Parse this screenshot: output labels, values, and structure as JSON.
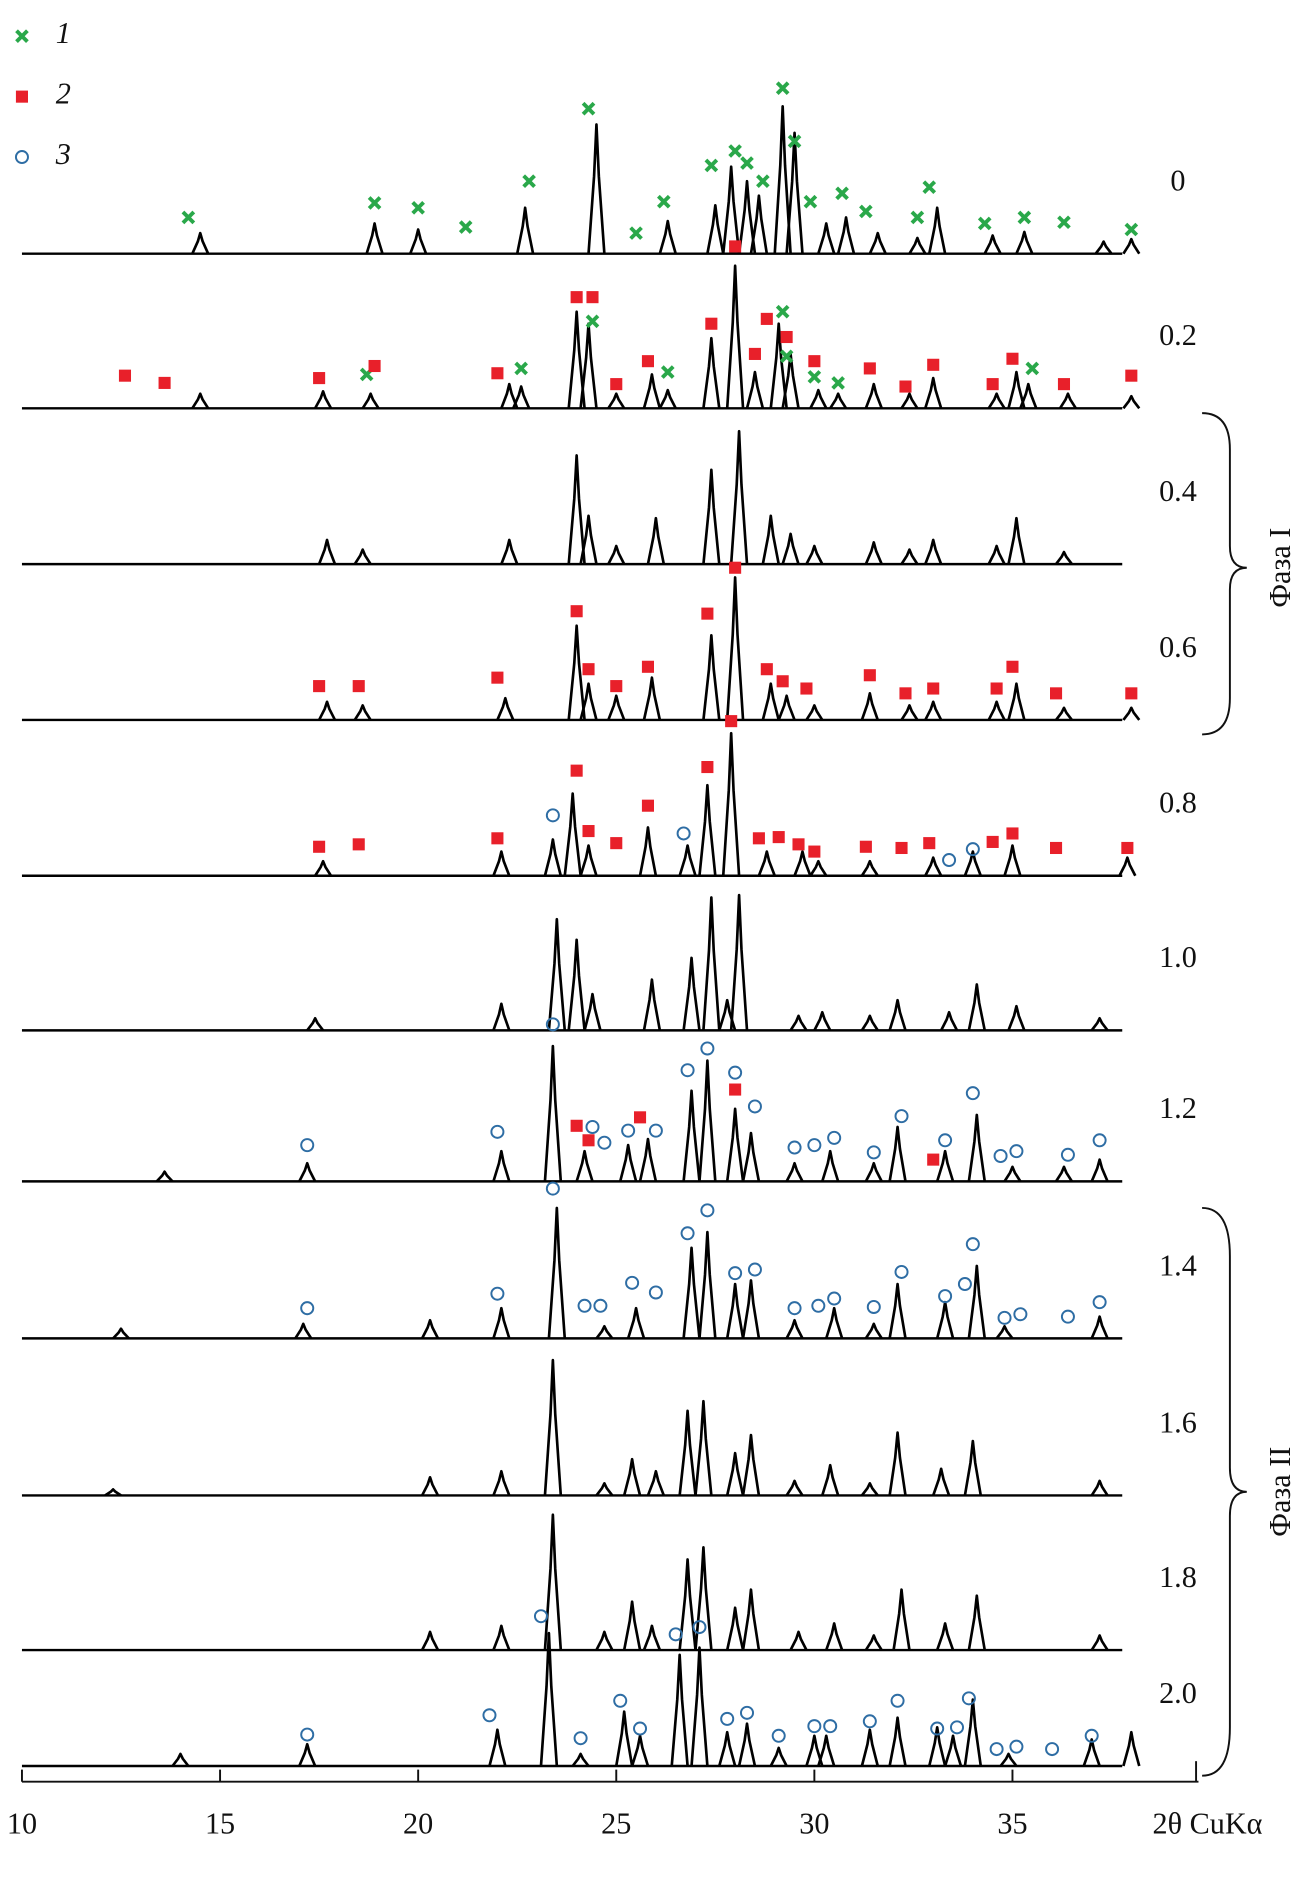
{
  "chart_data": {
    "type": "line",
    "xlabel": "2θ CuKα",
    "xlim": [
      10,
      39.6
    ],
    "xticks": [
      10,
      15,
      20,
      25,
      30,
      35
    ],
    "legend": [
      {
        "label": "1",
        "symbol": "cross",
        "color": "#2aa84a"
      },
      {
        "label": "2",
        "symbol": "square",
        "color": "#e8202a"
      },
      {
        "label": "3",
        "symbol": "circle",
        "color": "#2e6da4"
      }
    ],
    "phases": [
      {
        "label": "Фаза I"
      },
      {
        "label": "Фаза II"
      }
    ],
    "series": [
      {
        "name": "0",
        "color": "#000000",
        "x": [
          14.5,
          18.9,
          20.0,
          22.7,
          24.5,
          26.3,
          27.5,
          27.9,
          28.3,
          28.6,
          29.2,
          29.5,
          30.3,
          30.8,
          31.6,
          32.6,
          33.1,
          34.5,
          35.3,
          37.3,
          38.0
        ],
        "values": [
          17,
          25,
          20,
          38,
          107,
          27,
          40,
          72,
          60,
          48,
          122,
          100,
          25,
          30,
          17,
          13,
          38,
          15,
          18,
          10,
          12
        ],
        "markers": [
          {
            "x": [
              14.2,
              18.9,
              20.0,
              21.2,
              22.8,
              24.3,
              25.5,
              26.2,
              27.4,
              28.0,
              28.3,
              28.7,
              29.2,
              29.5,
              29.9,
              30.7,
              31.3,
              32.9,
              32.6,
              34.3,
              35.3,
              36.3,
              38.0
            ],
            "values": [
              30,
              42,
              38,
              22,
              60,
              120,
              17,
              43,
              73,
              85,
              75,
              60,
              137,
              93,
              43,
              50,
              35,
              55,
              30,
              25,
              30,
              26,
              20
            ]
          },
          {
            "x": [],
            "values": []
          },
          {
            "x": [],
            "values": []
          }
        ]
      },
      {
        "name": "0.2",
        "color": "#000000",
        "x": [
          14.5,
          17.6,
          18.8,
          22.3,
          22.6,
          24.0,
          24.3,
          25.0,
          25.9,
          26.3,
          27.4,
          28.0,
          28.5,
          29.1,
          29.4,
          30.1,
          30.6,
          31.5,
          32.4,
          33.0,
          34.6,
          35.1,
          35.4,
          36.4,
          38.0
        ],
        "values": [
          12,
          14,
          12,
          20,
          18,
          80,
          70,
          12,
          28,
          15,
          58,
          118,
          30,
          70,
          45,
          15,
          12,
          20,
          12,
          25,
          12,
          30,
          20,
          12,
          10
        ],
        "markers": [
          {
            "x": [
              18.7,
              22.6,
              24.4,
              26.3,
              29.2,
              29.3,
              30.0,
              30.6,
              35.5
            ],
            "values": [
              28,
              33,
              72,
              30,
              80,
              43,
              26,
              21,
              33
            ]
          },
          {
            "x": [
              12.6,
              13.6,
              17.5,
              18.9,
              22.0,
              24.0,
              24.4,
              25.0,
              25.8,
              27.4,
              28.0,
              28.5,
              28.8,
              29.3,
              30.0,
              31.4,
              32.3,
              33.0,
              34.5,
              35.0,
              36.3,
              38.0
            ],
            "values": [
              27,
              21,
              25,
              35,
              29,
              92,
              92,
              20,
              39,
              70,
              134,
              45,
              74,
              59,
              39,
              33,
              18,
              36,
              20,
              41,
              20,
              27
            ]
          },
          {
            "x": [],
            "values": []
          }
        ]
      },
      {
        "name": "0.4",
        "color": "#000000",
        "x": [
          17.7,
          18.6,
          22.3,
          24.0,
          24.3,
          25.0,
          26.0,
          27.4,
          28.1,
          28.9,
          29.4,
          30.0,
          31.5,
          32.4,
          33.0,
          34.6,
          35.1,
          36.3
        ],
        "values": [
          20,
          12,
          20,
          90,
          40,
          15,
          38,
          78,
          110,
          40,
          25,
          15,
          18,
          12,
          20,
          15,
          38,
          10
        ],
        "markers": [
          {
            "x": [],
            "values": []
          },
          {
            "x": [],
            "values": []
          },
          {
            "x": [],
            "values": []
          }
        ]
      },
      {
        "name": "0.6",
        "color": "#000000",
        "x": [
          17.7,
          18.6,
          22.2,
          24.0,
          24.3,
          25.0,
          25.9,
          27.4,
          28.0,
          28.9,
          29.3,
          30.0,
          31.4,
          32.4,
          33.0,
          34.6,
          35.1,
          36.3,
          38.0
        ],
        "values": [
          15,
          12,
          18,
          78,
          30,
          20,
          35,
          70,
          118,
          30,
          20,
          12,
          22,
          12,
          15,
          15,
          30,
          10,
          10
        ],
        "markers": [
          {
            "x": [],
            "values": []
          },
          {
            "x": [
              17.5,
              18.5,
              22.0,
              24.0,
              24.3,
              25.0,
              25.8,
              27.3,
              28.0,
              28.8,
              29.2,
              29.8,
              31.4,
              32.3,
              33.0,
              34.6,
              35.0,
              36.1,
              38.0
            ],
            "values": [
              28,
              28,
              35,
              90,
              42,
              28,
              44,
              88,
              126,
              42,
              32,
              26,
              37,
              22,
              26,
              26,
              44,
              22,
              22
            ]
          },
          {
            "x": [],
            "values": []
          }
        ]
      },
      {
        "name": "0.8",
        "color": "#000000",
        "x": [
          17.6,
          22.1,
          23.4,
          23.9,
          24.3,
          25.8,
          26.8,
          27.3,
          27.9,
          28.8,
          29.7,
          30.1,
          31.4,
          33.0,
          34.0,
          35.0,
          37.9
        ],
        "values": [
          12,
          20,
          30,
          68,
          25,
          40,
          25,
          75,
          118,
          20,
          20,
          12,
          12,
          15,
          20,
          25,
          15
        ],
        "markers": [
          {
            "x": [],
            "values": []
          },
          {
            "x": [
              17.5,
              18.5,
              22.0,
              24.0,
              24.3,
              25.0,
              25.8,
              27.3,
              27.9,
              28.6,
              29.1,
              29.6,
              30.0,
              31.3,
              32.2,
              32.9,
              34.5,
              35.0,
              36.1,
              37.9
            ],
            "values": [
              24,
              26,
              31,
              87,
              37,
              27,
              58,
              90,
              128,
              31,
              32,
              26,
              20,
              24,
              23,
              27,
              28,
              35,
              23,
              23
            ]
          },
          {
            "x": [
              23.4,
              26.7,
              33.4,
              34.0
            ],
            "values": [
              50,
              35,
              13,
              22
            ]
          }
        ]
      },
      {
        "name": "1.0",
        "color": "#000000",
        "x": [
          17.4,
          22.1,
          23.5,
          24.0,
          24.4,
          25.9,
          26.9,
          27.4,
          27.8,
          28.1,
          29.6,
          30.2,
          31.4,
          32.1,
          33.4,
          34.1,
          35.1,
          37.2
        ],
        "values": [
          10,
          22,
          92,
          75,
          30,
          42,
          60,
          110,
          25,
          112,
          12,
          15,
          12,
          25,
          15,
          38,
          20,
          10
        ],
        "markers": [
          {
            "x": [],
            "values": []
          },
          {
            "x": [],
            "values": []
          },
          {
            "x": [],
            "values": []
          }
        ]
      },
      {
        "name": "1.2",
        "color": "#000000",
        "x": [
          13.6,
          17.2,
          22.1,
          23.4,
          24.2,
          25.3,
          25.8,
          26.9,
          27.3,
          28.0,
          28.4,
          29.5,
          30.4,
          31.5,
          32.1,
          33.3,
          34.1,
          35.0,
          36.3,
          37.2
        ],
        "values": [
          8,
          15,
          25,
          112,
          25,
          30,
          35,
          75,
          100,
          60,
          40,
          15,
          25,
          15,
          45,
          25,
          55,
          12,
          12,
          18
        ],
        "markers": [
          {
            "x": [],
            "values": []
          },
          {
            "x": [
              24.0,
              24.3,
              25.6,
              28.0,
              33.0
            ],
            "values": [
              46,
              34,
              53,
              76,
              18
            ]
          },
          {
            "x": [
              17.2,
              22.0,
              23.4,
              24.4,
              24.7,
              25.3,
              26.0,
              26.8,
              27.3,
              28.0,
              28.5,
              29.5,
              30.0,
              30.5,
              31.5,
              32.2,
              33.3,
              34.0,
              34.7,
              35.1,
              36.4,
              37.2
            ],
            "values": [
              30,
              41,
              130,
              45,
              32,
              42,
              42,
              92,
              110,
              90,
              62,
              28,
              30,
              36,
              24,
              54,
              34,
              73,
              21,
              25,
              22,
              34
            ]
          }
        ]
      },
      {
        "name": "1.4",
        "color": "#000000",
        "x": [
          12.5,
          17.1,
          20.3,
          22.1,
          23.5,
          24.7,
          25.5,
          26.9,
          27.3,
          28.0,
          28.4,
          29.5,
          30.5,
          31.5,
          32.1,
          33.3,
          34.1,
          34.8,
          37.2
        ],
        "values": [
          8,
          12,
          15,
          25,
          108,
          10,
          25,
          75,
          88,
          45,
          48,
          15,
          25,
          12,
          45,
          30,
          60,
          10,
          18
        ],
        "markers": [
          {
            "x": [],
            "values": []
          },
          {
            "x": [],
            "values": []
          },
          {
            "x": [
              17.2,
              22.0,
              23.4,
              24.2,
              24.6,
              25.4,
              26.0,
              26.8,
              27.3,
              28.0,
              28.5,
              29.5,
              30.1,
              30.5,
              31.5,
              32.2,
              33.3,
              33.8,
              34.0,
              34.8,
              35.2,
              36.4,
              37.2
            ],
            "values": [
              25,
              37,
              124,
              27,
              27,
              46,
              38,
              87,
              106,
              54,
              57,
              25,
              27,
              33,
              26,
              55,
              35,
              45,
              78,
              17,
              20,
              18,
              30
            ]
          }
        ]
      },
      {
        "name": "1.6",
        "color": "#000000",
        "x": [
          12.3,
          20.3,
          22.1,
          23.4,
          24.7,
          25.4,
          26.0,
          26.8,
          27.2,
          28.0,
          28.4,
          29.5,
          30.4,
          31.4,
          32.1,
          33.2,
          34.0,
          37.2
        ],
        "values": [
          5,
          15,
          20,
          112,
          10,
          30,
          20,
          70,
          78,
          35,
          50,
          12,
          25,
          10,
          52,
          22,
          45,
          12
        ],
        "markers": [
          {
            "x": [],
            "values": []
          },
          {
            "x": [],
            "values": []
          },
          {
            "x": [],
            "values": []
          }
        ]
      },
      {
        "name": "1.8",
        "color": "#000000",
        "x": [
          20.3,
          22.1,
          23.4,
          24.7,
          25.4,
          25.9,
          26.8,
          27.2,
          28.0,
          28.4,
          29.6,
          30.5,
          31.5,
          32.2,
          33.3,
          34.1,
          37.2
        ],
        "values": [
          15,
          20,
          112,
          15,
          40,
          20,
          75,
          85,
          35,
          50,
          15,
          22,
          12,
          50,
          22,
          45,
          12
        ],
        "markers": [
          {
            "x": [],
            "values": []
          },
          {
            "x": [],
            "values": []
          },
          {
            "x": [],
            "values": []
          }
        ]
      },
      {
        "name": "2.0",
        "color": "#000000",
        "x": [
          14.0,
          17.2,
          22.0,
          23.3,
          24.1,
          25.2,
          25.6,
          26.6,
          27.1,
          27.8,
          28.3,
          29.1,
          30.0,
          30.3,
          31.4,
          32.1,
          33.1,
          33.5,
          34.0,
          34.9,
          37.0,
          38.0
        ],
        "values": [
          10,
          18,
          30,
          110,
          10,
          45,
          25,
          92,
          98,
          28,
          35,
          15,
          25,
          25,
          30,
          40,
          32,
          25,
          55,
          10,
          22,
          28
        ],
        "markers": [
          {
            "x": [],
            "values": []
          },
          {
            "x": [],
            "values": []
          },
          {
            "x": [
              17.2,
              21.8,
              23.1,
              24.1,
              25.1,
              25.6,
              26.5,
              27.1,
              27.8,
              28.3,
              29.1,
              30.0,
              30.4,
              31.4,
              32.1,
              33.1,
              33.6,
              33.9,
              34.6,
              35.1,
              36.0,
              37.0
            ],
            "values": [
              26,
              42,
              124,
              23,
              54,
              31,
              109,
              115,
              39,
              44,
              25,
              33,
              33,
              37,
              54,
              31,
              32,
              56,
              14,
              16,
              14,
              25
            ]
          }
        ]
      }
    ]
  }
}
